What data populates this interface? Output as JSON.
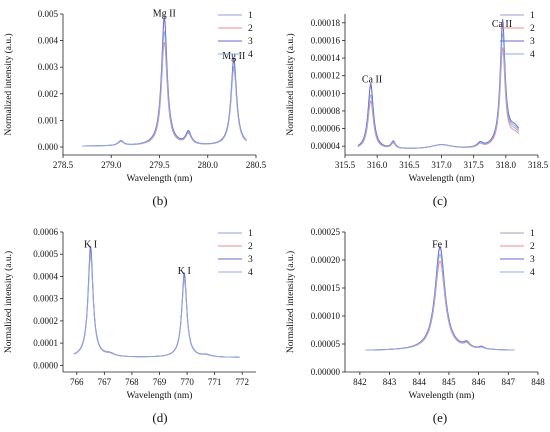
{
  "series_colors": [
    "#9aa0cc",
    "#f08a8a",
    "#6a6ad0",
    "#8ab0e6"
  ],
  "chart_data": [
    {
      "type": "line",
      "panel_label": "(b)",
      "xlabel": "Wavelength (nm)",
      "ylabel": "Normalized intensity (a.u.)",
      "xlim": [
        278.5,
        280.5
      ],
      "ylim": [
        -0.0003,
        0.005
      ],
      "xticks": [
        "278.5",
        "279.0",
        "279.5",
        "280.0",
        "280.5"
      ],
      "yticks": [
        "0.000",
        "0.001",
        "0.002",
        "0.003",
        "0.004",
        "0.005"
      ],
      "legend": [
        "1",
        "2",
        "3",
        "4"
      ],
      "legend_position": "top-right",
      "baseline": 3e-05,
      "xrange": [
        278.7,
        280.4
      ],
      "peaks": [
        {
          "center": 279.1,
          "width": 0.035,
          "heights": [
            0.00017,
            0.00015,
            0.00018,
            0.00016
          ]
        },
        {
          "center": 279.55,
          "width": 0.035,
          "heights": [
            0.0049,
            0.0039,
            0.0048,
            0.0043
          ]
        },
        {
          "center": 279.8,
          "width": 0.035,
          "heights": [
            0.00045,
            0.0004,
            0.00048,
            0.00042
          ]
        },
        {
          "center": 280.27,
          "width": 0.035,
          "heights": [
            0.0032,
            0.0029,
            0.0033,
            0.003
          ]
        }
      ],
      "annotations": [
        {
          "text": "Mg II",
          "x": 279.55,
          "y": 0.0049
        },
        {
          "text": "Mg II",
          "x": 280.27,
          "y": 0.0033
        }
      ]
    },
    {
      "type": "line",
      "panel_label": "(c)",
      "xlabel": "Wavelength (nm)",
      "ylabel": "Normalized intensity (a.u.)",
      "xlim": [
        315.5,
        318.5
      ],
      "ylim": [
        3e-05,
        0.00019
      ],
      "xticks": [
        "315.5",
        "316.0",
        "316.5",
        "317.0",
        "317.5",
        "318.0",
        "318.5"
      ],
      "yticks": [
        "0.00004",
        "0.00006",
        "0.00008",
        "0.00010",
        "0.00012",
        "0.00014",
        "0.00016",
        "0.00018"
      ],
      "legend": [
        "1",
        "2",
        "3",
        "4"
      ],
      "legend_position": "top-right",
      "baseline": 3.6e-05,
      "xrange": [
        315.7,
        318.2
      ],
      "peaks": [
        {
          "center": 315.9,
          "width": 0.05,
          "heights": [
            7.2e-05,
            5.5e-05,
            7.5e-05,
            6.2e-05
          ]
        },
        {
          "center": 316.25,
          "width": 0.04,
          "heights": [
            7e-06,
            6e-06,
            8e-06,
            7e-06
          ]
        },
        {
          "center": 317.0,
          "width": 0.2,
          "heights": [
            5e-06,
            5e-06,
            5e-06,
            5e-06
          ]
        },
        {
          "center": 317.6,
          "width": 0.05,
          "heights": [
            5e-06,
            4e-06,
            5e-06,
            4e-06
          ]
        },
        {
          "center": 317.95,
          "width": 0.045,
          "heights": [
            0.000135,
            0.00011,
            0.00014,
            0.000125
          ]
        },
        {
          "center": 318.15,
          "width": 0.15,
          "heights": [
            2e-05,
            1.6e-05,
            2.2e-05,
            1.8e-05
          ]
        }
      ],
      "annotations": [
        {
          "text": "Ca II",
          "x": 315.92,
          "y": 0.000112
        },
        {
          "text": "Ca II",
          "x": 317.94,
          "y": 0.000175
        }
      ]
    },
    {
      "type": "line",
      "panel_label": "(d)",
      "xlabel": "Wavelength (nm)",
      "ylabel": "Normalized intensity (a.u.)",
      "xlim": [
        765.5,
        772.5
      ],
      "ylim": [
        -3e-05,
        0.0006
      ],
      "xticks": [
        "766",
        "767",
        "768",
        "769",
        "770",
        "771",
        "772"
      ],
      "yticks": [
        "0.0000",
        "0.0001",
        "0.0002",
        "0.0003",
        "0.0004",
        "0.0005",
        "0.0006"
      ],
      "legend": [
        "1",
        "2",
        "3",
        "4"
      ],
      "legend_position": "top-right",
      "baseline": 3.5e-05,
      "xrange": [
        765.9,
        771.9
      ],
      "peaks": [
        {
          "center": 766.5,
          "width": 0.11,
          "heights": [
            0.00049,
            0.00046,
            0.0005,
            0.00047
          ]
        },
        {
          "center": 767.2,
          "width": 0.2,
          "heights": [
            1.2e-05,
            1e-05,
            1.2e-05,
            1.1e-05
          ]
        },
        {
          "center": 769.9,
          "width": 0.11,
          "heights": [
            0.00037,
            0.00035,
            0.00038,
            0.00036
          ]
        },
        {
          "center": 770.7,
          "width": 0.2,
          "heights": [
            8e-06,
            7e-06,
            8e-06,
            7e-06
          ]
        }
      ],
      "annotations": [
        {
          "text": "K I",
          "x": 766.5,
          "y": 0.00053
        },
        {
          "text": "K I",
          "x": 769.9,
          "y": 0.00041
        }
      ]
    },
    {
      "type": "line",
      "panel_label": "(e)",
      "xlabel": "Wavelength (nm)",
      "ylabel": "Normalized intensity (a.u.)",
      "xlim": [
        841.5,
        848
      ],
      "ylim": [
        0,
        0.00025
      ],
      "xticks": [
        "842",
        "843",
        "844",
        "845",
        "846",
        "847",
        "848"
      ],
      "yticks": [
        "0.00000",
        "0.00005",
        "0.00010",
        "0.00015",
        "0.00020",
        "0.00025"
      ],
      "legend": [
        "1",
        "2",
        "3",
        "4"
      ],
      "legend_position": "top-right",
      "baseline": 3.8e-05,
      "xrange": [
        842.2,
        847.2
      ],
      "peaks": [
        {
          "center": 844.7,
          "width": 0.2,
          "heights": [
            0.000183,
            0.00016,
            0.000186,
            0.000172
          ]
        },
        {
          "center": 845.6,
          "width": 0.12,
          "heights": [
            8e-06,
            7e-06,
            9e-06,
            8e-06
          ]
        },
        {
          "center": 846.1,
          "width": 0.1,
          "heights": [
            4e-06,
            3e-06,
            4e-06,
            3e-06
          ]
        }
      ],
      "annotations": [
        {
          "text": "Fe I",
          "x": 844.7,
          "y": 0.000222
        }
      ]
    }
  ]
}
